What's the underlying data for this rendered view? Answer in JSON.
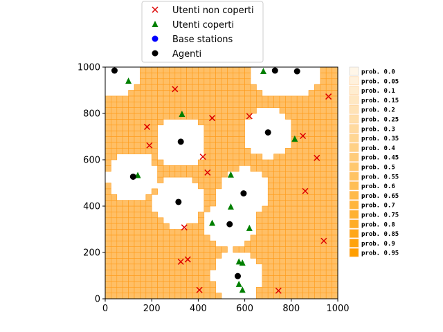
{
  "chart_data": {
    "type": "scatter",
    "xlim": [
      0,
      1000
    ],
    "ylim": [
      0,
      1000
    ],
    "x_ticks": [
      "0",
      "200",
      "400",
      "600",
      "800",
      "1000"
    ],
    "y_ticks": [
      "0",
      "200",
      "400",
      "600",
      "800",
      "1000"
    ],
    "grid": false,
    "legend_position": "top-center",
    "legend": [
      {
        "label": "Utenti non coperti",
        "marker": "x",
        "color": "#dd0000"
      },
      {
        "label": "Utenti coperti",
        "marker": "triangle",
        "color": "#007f00"
      },
      {
        "label": "Base stations",
        "marker": "circle",
        "color": "#0000ff"
      },
      {
        "label": "Agenti",
        "marker": "circle",
        "color": "#000000"
      }
    ],
    "coverage_colors": {
      "fill": "#ffbf66",
      "edge": "#ff9c1a",
      "covered": "#ffffff"
    },
    "coverage_cell_size": 25,
    "colorbar_labels": [
      "prob. 0.0",
      "prob. 0.05",
      "prob. 0.1",
      "prob. 0.15",
      "prob. 0.2",
      "prob. 0.25",
      "prob. 0.3",
      "prob. 0.35",
      "prob. 0.4",
      "prob. 0.45",
      "prob. 0.5",
      "prob. 0.55",
      "prob. 0.6",
      "prob. 0.65",
      "prob. 0.7",
      "prob. 0.75",
      "prob. 0.8",
      "prob. 0.85",
      "prob. 0.9",
      "prob. 0.95"
    ],
    "agents": [
      {
        "x": 40,
        "y": 985
      },
      {
        "x": 730,
        "y": 985
      },
      {
        "x": 825,
        "y": 982
      },
      {
        "x": 325,
        "y": 678
      },
      {
        "x": 700,
        "y": 718
      },
      {
        "x": 120,
        "y": 527
      },
      {
        "x": 595,
        "y": 455
      },
      {
        "x": 315,
        "y": 418
      },
      {
        "x": 535,
        "y": 322
      },
      {
        "x": 570,
        "y": 98
      }
    ],
    "covered_users": [
      {
        "x": 100,
        "y": 940
      },
      {
        "x": 680,
        "y": 982
      },
      {
        "x": 330,
        "y": 797
      },
      {
        "x": 815,
        "y": 690
      },
      {
        "x": 140,
        "y": 533
      },
      {
        "x": 540,
        "y": 535
      },
      {
        "x": 540,
        "y": 397
      },
      {
        "x": 460,
        "y": 327
      },
      {
        "x": 620,
        "y": 305
      },
      {
        "x": 575,
        "y": 160
      },
      {
        "x": 590,
        "y": 155
      },
      {
        "x": 575,
        "y": 63
      },
      {
        "x": 590,
        "y": 38
      }
    ],
    "uncovered_users": [
      {
        "x": 300,
        "y": 905
      },
      {
        "x": 960,
        "y": 873
      },
      {
        "x": 460,
        "y": 780
      },
      {
        "x": 620,
        "y": 788
      },
      {
        "x": 180,
        "y": 742
      },
      {
        "x": 850,
        "y": 703
      },
      {
        "x": 190,
        "y": 662
      },
      {
        "x": 420,
        "y": 613
      },
      {
        "x": 910,
        "y": 608
      },
      {
        "x": 440,
        "y": 545
      },
      {
        "x": 860,
        "y": 465
      },
      {
        "x": 340,
        "y": 308
      },
      {
        "x": 940,
        "y": 250
      },
      {
        "x": 355,
        "y": 170
      },
      {
        "x": 325,
        "y": 160
      },
      {
        "x": 405,
        "y": 38
      },
      {
        "x": 745,
        "y": 35
      }
    ],
    "coverage_radius": 110
  }
}
